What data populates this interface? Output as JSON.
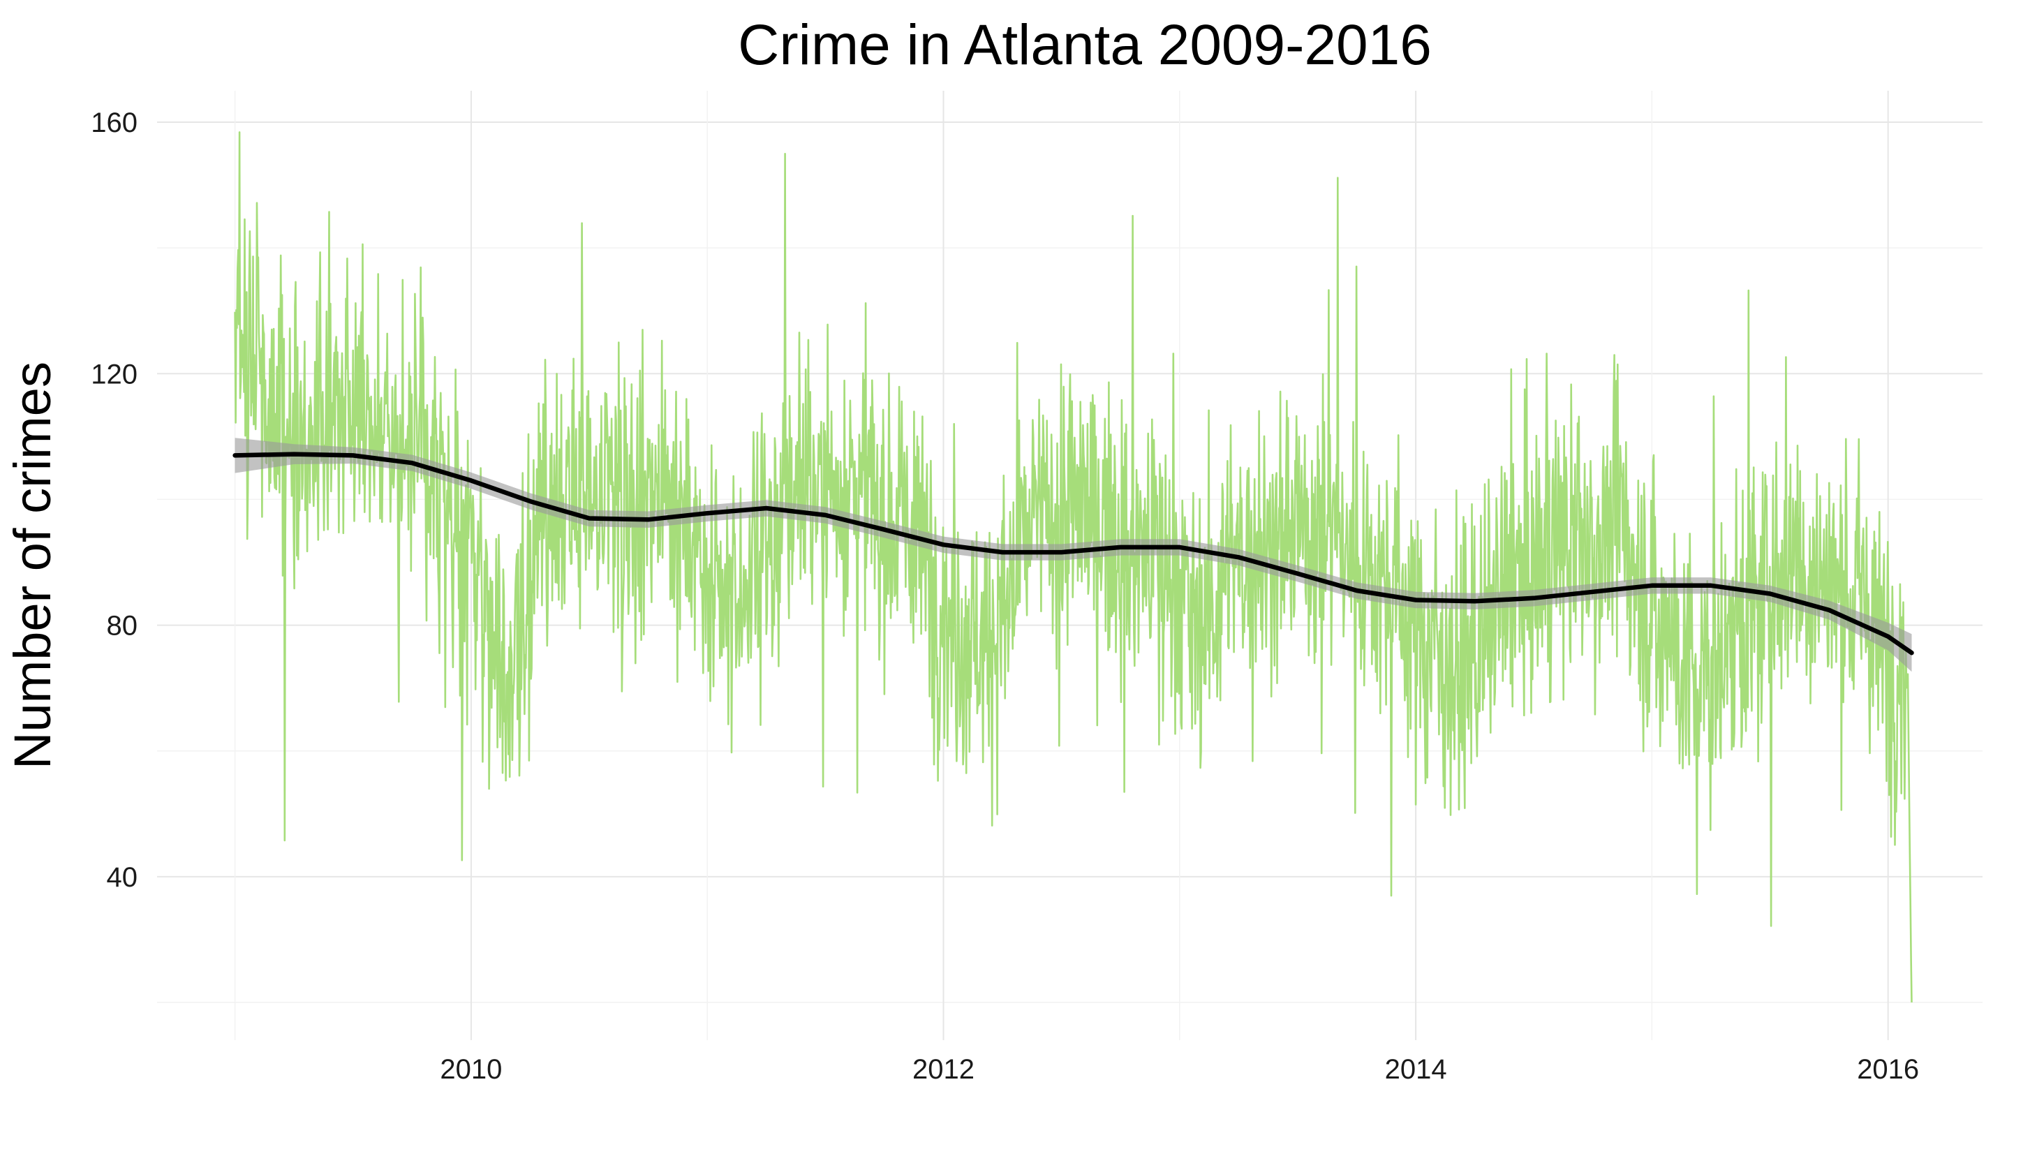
{
  "chart_data": {
    "type": "line",
    "title": "Crime in Atlanta 2009-2016",
    "xlabel": "",
    "ylabel": "Number of crimes",
    "xlim": [
      2008.67,
      2016.4
    ],
    "ylim": [
      14,
      165
    ],
    "x_ticks": [
      2010,
      2012,
      2014,
      2016
    ],
    "y_ticks": [
      40,
      80,
      120,
      160
    ],
    "grid": true,
    "colors": {
      "raw": "#a6dd7a",
      "smooth": "#000000",
      "ribbon": "#999999"
    },
    "series": [
      {
        "role": "daily counts",
        "description_hidden": true,
        "anchors": [
          [
            2009.0,
            128
          ],
          [
            2009.25,
            110
          ],
          [
            2009.5,
            116
          ],
          [
            2009.75,
            110
          ],
          [
            2010.0,
            90
          ],
          [
            2010.15,
            75
          ],
          [
            2010.35,
            95
          ],
          [
            2010.6,
            100
          ],
          [
            2010.85,
            102
          ],
          [
            2011.05,
            80
          ],
          [
            2011.25,
            92
          ],
          [
            2011.35,
            100
          ],
          [
            2011.6,
            103
          ],
          [
            2011.85,
            95
          ],
          [
            2012.05,
            80
          ],
          [
            2012.2,
            78
          ],
          [
            2012.4,
            97
          ],
          [
            2012.6,
            98
          ],
          [
            2012.85,
            92
          ],
          [
            2013.1,
            82
          ],
          [
            2013.3,
            92
          ],
          [
            2013.6,
            96
          ],
          [
            2013.85,
            88
          ],
          [
            2014.05,
            78
          ],
          [
            2014.2,
            72
          ],
          [
            2014.4,
            85
          ],
          [
            2014.6,
            92
          ],
          [
            2014.85,
            95
          ],
          [
            2015.05,
            80
          ],
          [
            2015.2,
            70
          ],
          [
            2015.4,
            82
          ],
          [
            2015.6,
            90
          ],
          [
            2015.85,
            85
          ],
          [
            2016.0,
            75
          ],
          [
            2016.1,
            72
          ]
        ]
      },
      {
        "role": "smoothed trend",
        "x": [
          2009.0,
          2009.25,
          2009.5,
          2009.75,
          2010.0,
          2010.25,
          2010.5,
          2010.75,
          2011.0,
          2011.25,
          2011.5,
          2011.75,
          2012.0,
          2012.25,
          2012.5,
          2012.75,
          2013.0,
          2013.25,
          2013.5,
          2013.75,
          2014.0,
          2014.25,
          2014.5,
          2014.75,
          2015.0,
          2015.25,
          2015.5,
          2015.75,
          2016.0,
          2016.1
        ],
        "values": [
          107,
          107.2,
          107,
          105.8,
          103,
          99.7,
          97,
          96.8,
          97.8,
          98.6,
          97.5,
          95.2,
          92.8,
          91.6,
          91.6,
          92.4,
          92.4,
          90.8,
          88.2,
          85.5,
          84,
          83.8,
          84.3,
          85.3,
          86.3,
          86.3,
          85,
          82.4,
          78.2,
          75.6
        ],
        "ribbon_halfwidth": [
          2.8,
          1.6,
          1.3,
          1.3,
          1.3,
          1.3,
          1.3,
          1.3,
          1.3,
          1.3,
          1.3,
          1.3,
          1.3,
          1.3,
          1.3,
          1.3,
          1.3,
          1.3,
          1.3,
          1.3,
          1.3,
          1.3,
          1.3,
          1.3,
          1.3,
          1.3,
          1.3,
          1.5,
          2.2,
          3.0
        ]
      }
    ]
  }
}
